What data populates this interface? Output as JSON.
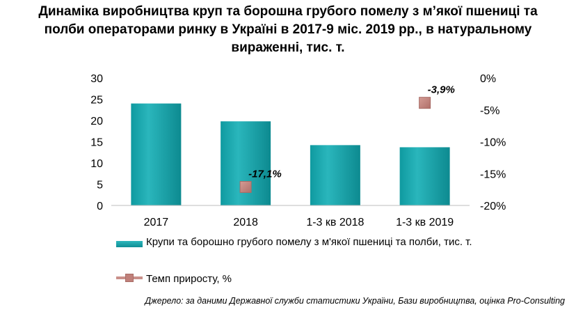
{
  "title_lines": [
    "Динаміка виробництва круп та борошна грубого помелу з м’якої пшениці та",
    "полби операторами ринку в Україні в 2017-9 міс. 2019 рр., в натуральному",
    "вираженні, тис. т."
  ],
  "legend": {
    "bar_label": "Крупи та борошно  грубого  помелу  з  м'якої  пшениці  та  полби, тис. т.",
    "line_label": "Темп приросту,  %"
  },
  "source": "Джерело: за даними Державної служби статистики України, Бази виробництва, оцінка Pro-Consulting",
  "colors": {
    "bar": "#17a0a6",
    "marker": "#c0807a"
  },
  "chart_data": {
    "type": "bar",
    "categories": [
      "2017",
      "2018",
      "1-3 кв 2018",
      "1-3 кв 2019"
    ],
    "series": [
      {
        "name": "Крупи та борошно  грубого  помелу  з  м'якої  пшениці  та  полби, тис. т.",
        "values": [
          24.0,
          19.8,
          14.2,
          13.7
        ],
        "axis": "left"
      },
      {
        "name": "Темп приросту,  %",
        "type": "scatter",
        "values": [
          null,
          -17.1,
          null,
          -3.9
        ],
        "labels": [
          "",
          "-17,1%",
          "",
          "-3,9%"
        ],
        "axis": "right"
      }
    ],
    "y_left": {
      "min": 0,
      "max": 30,
      "ticks": [
        "0",
        "5",
        "10",
        "15",
        "20",
        "25",
        "30"
      ]
    },
    "y_right": {
      "min": -20,
      "max": 0,
      "ticks": [
        "-20%",
        "-15%",
        "-10%",
        "-5%",
        "0%"
      ]
    },
    "grid": false,
    "legend_position": "bottom"
  }
}
